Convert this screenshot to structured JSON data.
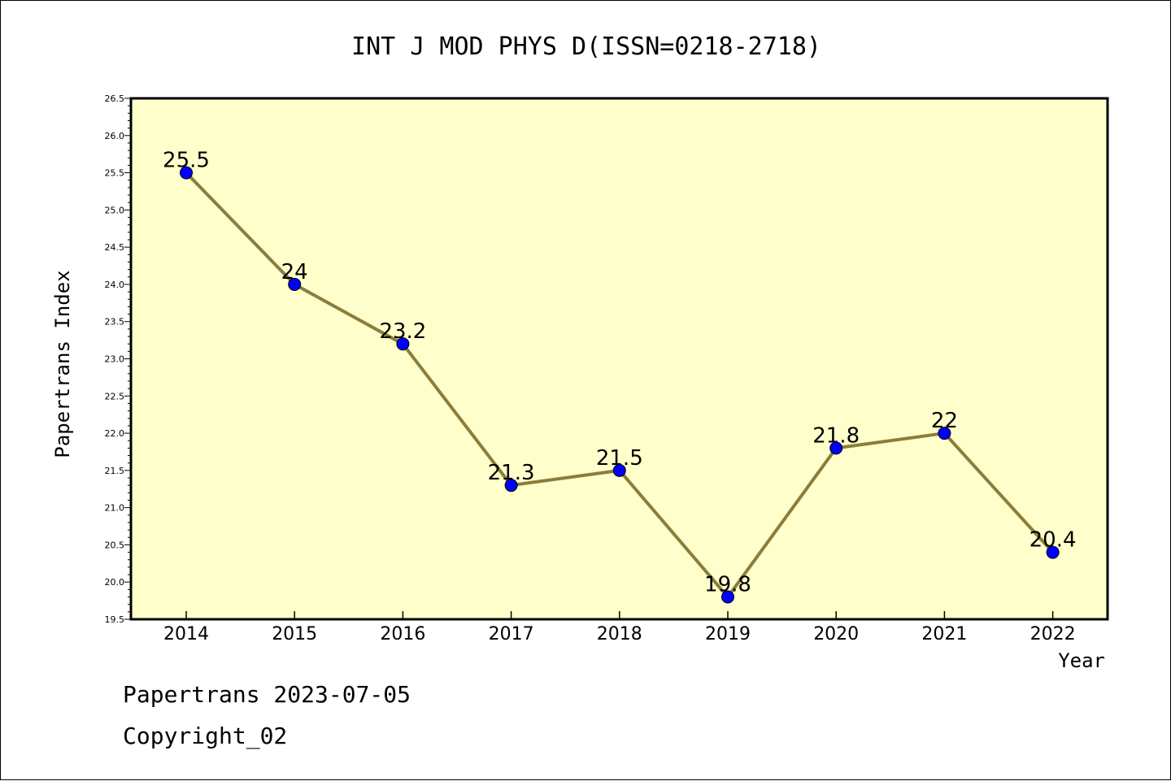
{
  "chart_data": {
    "type": "line",
    "title": "INT J MOD PHYS D(ISSN=0218-2718)",
    "xlabel": "Year",
    "ylabel": "Papertrans Index",
    "categories": [
      "2014",
      "2015",
      "2016",
      "2017",
      "2018",
      "2019",
      "2020",
      "2021",
      "2022"
    ],
    "series": [
      {
        "values": [
          25.5,
          24,
          23.2,
          21.3,
          21.5,
          19.8,
          21.8,
          22,
          20.4
        ],
        "labels": [
          "25.5",
          "24",
          "23.2",
          "21.3",
          "21.5",
          "19.8",
          "21.8",
          "22",
          "20.4"
        ]
      }
    ],
    "ylim": [
      19.5,
      26.5
    ],
    "yticks": [
      "19.5",
      "20.0",
      "20.5",
      "21.0",
      "21.5",
      "22.0",
      "22.5",
      "23.0",
      "23.5",
      "24.0",
      "24.5",
      "25.0",
      "25.5",
      "26.0",
      "26.5"
    ],
    "colors": {
      "plot_background": "#ffffcc",
      "line": "#8b7d3a",
      "marker": "#0000ff"
    }
  },
  "footer": {
    "line1": "Papertrans 2023-07-05",
    "line2": "Copyright_02"
  }
}
